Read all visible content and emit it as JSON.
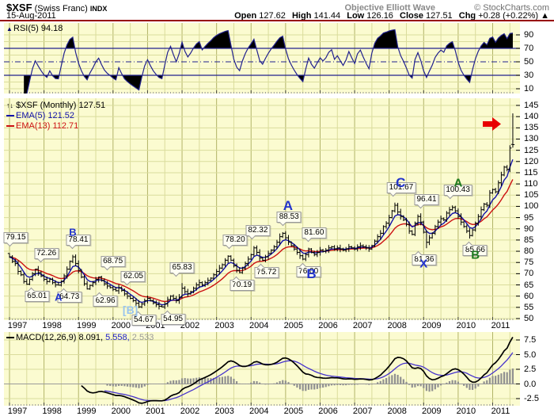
{
  "header": {
    "symbol": "$XSF",
    "symbol_desc": "(Swiss Franc)",
    "index_tag": "INDX",
    "date": "15-Aug-2011",
    "oew": "Objective Elliott Wave",
    "copyright": "© StockCharts.com",
    "open_label": "Open",
    "open": "127.62",
    "high_label": "High",
    "high": "141.44",
    "low_label": "Low",
    "low": "126.16",
    "close_label": "Close",
    "close": "127.51",
    "chg_label": "Chg",
    "chg": "+0.28 (+0.22%)",
    "chg_arrow": "▲"
  },
  "legends": {
    "rsi_icon": "▲",
    "rsi": "RSI(5) 94.18",
    "price_icon": "↑↓",
    "price": "$XSF (Monthly) 127.51",
    "ema5": "EMA(5) 121.52",
    "ema13": "EMA(13) 112.71",
    "macd_name": "MACD(12,26,9) 8.091,",
    "macd_signal_val": "5.558,",
    "macd_hist_val": "2.533"
  },
  "colors": {
    "panel_bg": "#fbfbd0",
    "grid_light": "#dadc9c",
    "grid_dark": "#b2b468",
    "navy": "#22228e",
    "ema5": "#1111aa",
    "ema13": "#cc1111",
    "signal": "#4633cc",
    "hist": "#909090",
    "maroon": "#970000",
    "arrow_red": "#e80000",
    "fill_black": "#000000"
  },
  "x_axis": {
    "years": [
      "1997",
      "1998",
      "1999",
      "2000",
      "2001",
      "2002",
      "2003",
      "2004",
      "2005",
      "2006",
      "2007",
      "2008",
      "2009",
      "2010",
      "2011"
    ]
  },
  "chart_data": [
    {
      "type": "line",
      "title": "RSI(5)",
      "last_value": 94.18,
      "ylim": [
        0,
        100
      ],
      "axis_ticks": [
        90,
        70,
        50,
        30,
        10
      ],
      "hlines": {
        "overbought": 70,
        "mid": 50,
        "oversold": 30
      },
      "fill_above": 70,
      "fill_below": 30,
      "derivation": "RSI period 5 of the monthly closes below"
    },
    {
      "type": "ohlc-bar",
      "title": "$XSF (Monthly)",
      "start": "1997-01",
      "end": "2011-08",
      "ylim": [
        50,
        145
      ],
      "axis_ticks": [
        145,
        140,
        135,
        130,
        125,
        120,
        115,
        110,
        105,
        100,
        95,
        90,
        85,
        80,
        75,
        70,
        65,
        60,
        55,
        50
      ],
      "first_open": 79.0,
      "monthly_close": [
        77.5,
        75.5,
        74.5,
        71.0,
        69.5,
        66.5,
        65.3,
        67.5,
        70.0,
        72.0,
        70.5,
        69.0,
        67.5,
        66.5,
        67.5,
        66.0,
        65.0,
        64.9,
        66.5,
        69.0,
        72.0,
        75.5,
        77.5,
        74.5,
        71.5,
        68.5,
        65.5,
        63.2,
        64.8,
        66.0,
        67.5,
        68.5,
        67.0,
        65.5,
        64.5,
        63.8,
        63.0,
        62.4,
        63.8,
        62.5,
        61.0,
        60.0,
        59.0,
        58.0,
        56.8,
        55.2,
        56.5,
        58.0,
        59.0,
        58.0,
        57.0,
        56.2,
        55.5,
        55.2,
        56.5,
        58.5,
        60.0,
        59.0,
        58.0,
        59.5,
        63.5,
        62.0,
        61.0,
        62.0,
        63.5,
        65.0,
        66.0,
        65.0,
        66.0,
        67.0,
        68.0,
        69.5,
        71.0,
        72.5,
        74.0,
        76.0,
        77.8,
        76.0,
        73.5,
        71.5,
        70.5,
        72.5,
        74.5,
        76.5,
        78.5,
        81.5,
        79.5,
        77.0,
        76.0,
        77.5,
        79.0,
        80.5,
        82.0,
        84.0,
        86.5,
        88.0,
        86.0,
        84.0,
        82.5,
        81.0,
        79.5,
        78.0,
        76.5,
        78.5,
        81.0,
        79.5,
        78.5,
        79.5,
        80.5,
        80.0,
        80.5,
        81.5,
        82.0,
        81.0,
        81.5,
        81.0,
        80.5,
        81.0,
        82.0,
        81.5,
        81.0,
        82.0,
        82.5,
        82.0,
        81.5,
        81.0,
        82.5,
        84.5,
        86.5,
        88.0,
        91.0,
        92.5,
        95.0,
        98.0,
        100.5,
        97.5,
        95.5,
        94.0,
        92.0,
        89.0,
        87.5,
        92.5,
        95.5,
        93.0,
        88.5,
        84.0,
        86.0,
        88.0,
        91.0,
        93.0,
        94.5,
        94.0,
        97.0,
        98.5,
        99.5,
        98.0,
        95.5,
        93.0,
        91.0,
        89.0,
        87.0,
        89.5,
        92.5,
        95.5,
        98.5,
        101.0,
        100.5,
        106.0,
        107.5,
        106.5,
        110.5,
        114.0,
        117.5,
        116.5,
        126.0,
        127.51
      ],
      "wick_overrides": {
        "0": {
          "h": 79.15
        },
        "6": {
          "l": 65.01
        },
        "9": {
          "h": 72.26
        },
        "17": {
          "l": 64.73
        },
        "22": {
          "h": 78.41
        },
        "27": {
          "l": 62.96
        },
        "31": {
          "h": 68.75
        },
        "37": {
          "l": 62.05
        },
        "45": {
          "l": 54.67
        },
        "53": {
          "l": 54.95
        },
        "60": {
          "h": 65.83
        },
        "76": {
          "h": 78.2
        },
        "80": {
          "l": 70.19
        },
        "85": {
          "h": 82.32
        },
        "88": {
          "l": 75.72
        },
        "95": {
          "h": 88.53
        },
        "102": {
          "l": 76.0
        },
        "104": {
          "h": 81.6
        },
        "134": {
          "h": 101.67
        },
        "142": {
          "h": 96.41
        },
        "145": {
          "l": 81.36
        },
        "154": {
          "h": 100.43
        },
        "160": {
          "l": 85.66
        },
        "175": {
          "h": 141.44,
          "l": 126.16,
          "o": 127.62
        }
      },
      "overlays": [
        {
          "name": "EMA(5)",
          "last_value": 121.52
        },
        {
          "name": "EMA(13)",
          "last_value": 112.71
        }
      ],
      "last_bar": {
        "open": 127.62,
        "high": 141.44,
        "low": 126.16,
        "close": 127.51
      }
    },
    {
      "type": "line+histogram",
      "title": "MACD(12,26,9)",
      "last_values": {
        "macd": 8.091,
        "signal": 5.558,
        "histogram": 2.533
      },
      "ylim": [
        -3.5,
        8.8
      ],
      "axis_ticks": [
        "7.5",
        "5.0",
        "2.5",
        "0.0",
        "-2.5"
      ],
      "derivation": "MACD 12,26 with 9-period signal of the monthly closes above"
    }
  ],
  "annotations": {
    "callouts": [
      {
        "m": 0,
        "v": 79.15,
        "dx": 5,
        "text": "79.15",
        "place": "above"
      },
      {
        "m": 9,
        "v": 72.26,
        "dx": 14,
        "text": "72.26",
        "place": "above"
      },
      {
        "m": 6,
        "v": 65.01,
        "dx": 13,
        "text": "65.01",
        "place": "below"
      },
      {
        "m": 17,
        "v": 64.73,
        "dx": 14,
        "text": "64.73",
        "place": "below"
      },
      {
        "m": 22,
        "v": 78.41,
        "dx": 7,
        "text": "78.41",
        "place": "above"
      },
      {
        "m": 27,
        "v": 62.96,
        "dx": 23,
        "text": "62.96",
        "place": "below"
      },
      {
        "m": 31,
        "v": 68.75,
        "dx": 18,
        "text": "68.75",
        "place": "above"
      },
      {
        "m": 37,
        "v": 62.05,
        "dx": 22,
        "text": "62.05",
        "place": "above"
      },
      {
        "m": 45,
        "v": 54.67,
        "dx": 6,
        "text": "54.67",
        "place": "below"
      },
      {
        "m": 53,
        "v": 54.95,
        "dx": 14,
        "text": "54.95",
        "place": "below"
      },
      {
        "m": 60,
        "v": 65.83,
        "dx": 0,
        "text": "65.83",
        "place": "above"
      },
      {
        "m": 76,
        "v": 78.2,
        "dx": 9,
        "text": "78.20",
        "place": "above"
      },
      {
        "m": 80,
        "v": 70.19,
        "dx": 3,
        "text": "70.19",
        "place": "below"
      },
      {
        "m": 85,
        "v": 82.32,
        "dx": 5,
        "text": "82.32",
        "place": "above"
      },
      {
        "m": 88,
        "v": 75.72,
        "dx": 5,
        "text": "75.72",
        "place": "below"
      },
      {
        "m": 95,
        "v": 88.53,
        "dx": 8,
        "text": "88.53",
        "place": "above"
      },
      {
        "m": 102,
        "v": 76.0,
        "dx": 7,
        "text": "76.00",
        "place": "below"
      },
      {
        "m": 104,
        "v": 81.6,
        "dx": 7,
        "text": "81.60",
        "place": "above"
      },
      {
        "m": 134,
        "v": 101.67,
        "dx": 8,
        "text": "101.67",
        "place": "above"
      },
      {
        "m": 142,
        "v": 96.41,
        "dx": 11,
        "text": "96.41",
        "place": "above"
      },
      {
        "m": 145,
        "v": 81.36,
        "dx": -3,
        "text": "81.36",
        "place": "below"
      },
      {
        "m": 154,
        "v": 100.43,
        "dx": 7,
        "text": "100.43",
        "place": "above"
      },
      {
        "m": 160,
        "v": 85.66,
        "dx": 7,
        "text": "85.66",
        "place": "below"
      }
    ],
    "letters": [
      {
        "m": 17,
        "v": 59.5,
        "dx": 0,
        "text": "A",
        "color": "blue",
        "size": 13
      },
      {
        "m": 22,
        "v": 88.5,
        "dx": 0,
        "text": "B",
        "color": "blue",
        "size": 13
      },
      {
        "m": 42,
        "v": 54.0,
        "dx": 0,
        "text": "[B]",
        "color": "lightblue",
        "size": 14
      },
      {
        "m": 96,
        "v": 100.0,
        "dx": 3,
        "text": "A",
        "color": "blue",
        "size": 17
      },
      {
        "m": 105,
        "v": 69.8,
        "dx": 0,
        "text": "B",
        "color": "blue",
        "size": 17
      },
      {
        "m": 136,
        "v": 110.5,
        "dx": 0,
        "text": "C",
        "color": "blue",
        "size": 17
      },
      {
        "m": 144,
        "v": 74.2,
        "dx": 0,
        "text": "X",
        "color": "blue",
        "size": 15
      },
      {
        "m": 156,
        "v": 110.4,
        "dx": 0,
        "text": "A",
        "color": "green",
        "size": 15
      },
      {
        "m": 162,
        "v": 78.3,
        "dx": 0,
        "text": "B",
        "color": "green",
        "size": 15
      }
    ],
    "red_arrow": {
      "m": 170,
      "v": 137.0
    }
  }
}
